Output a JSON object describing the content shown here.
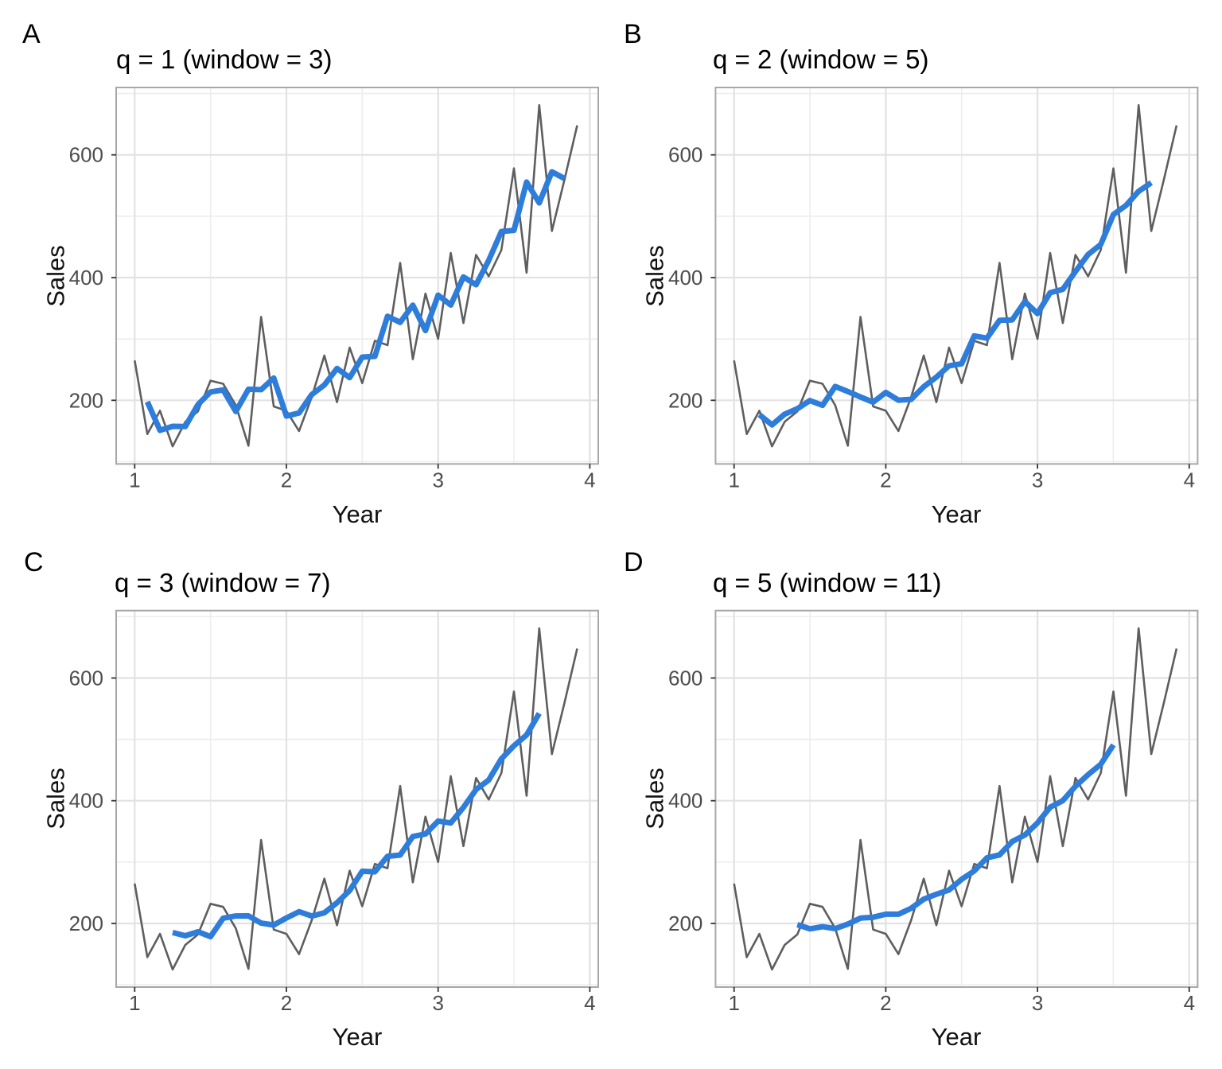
{
  "figure": {
    "xlabel": "Year",
    "ylabel": "Sales",
    "x_ticks": [
      "1",
      "2",
      "3",
      "4"
    ],
    "y_ticks": [
      "200",
      "400",
      "600"
    ]
  },
  "panels": [
    {
      "letter": "A",
      "title": "q = 1 (window = 3)",
      "q": 1,
      "window": 3
    },
    {
      "letter": "B",
      "title": "q = 2 (window = 5)",
      "q": 2,
      "window": 5
    },
    {
      "letter": "C",
      "title": "q = 3 (window = 7)",
      "q": 3,
      "window": 7
    },
    {
      "letter": "D",
      "title": "q = 5 (window = 11)",
      "q": 5,
      "window": 11
    }
  ],
  "chart_data": [
    {
      "type": "line",
      "title": "q = 1 (window = 3)",
      "xlabel": "Year",
      "ylabel": "Sales",
      "x_start": 1,
      "x_step": 0.0833333,
      "xlim": [
        0.88,
        4.06
      ],
      "ylim": [
        97,
        708
      ],
      "x_tick_values": [
        1,
        2,
        3,
        4
      ],
      "y_tick_values": [
        200,
        400,
        600
      ],
      "grid": "on",
      "series": [
        {
          "name": "raw_sales",
          "color": "#5E5E5E",
          "values": [
            265,
            145,
            183,
            125,
            165,
            182,
            232,
            227,
            192,
            126,
            336,
            190,
            183,
            150,
            205,
            273,
            197,
            286,
            228,
            297,
            290,
            424,
            267,
            374,
            300,
            440,
            326,
            437,
            402,
            445,
            578,
            408,
            681,
            476,
            560,
            648
          ]
        },
        {
          "name": "trend_moving_average",
          "color": "#2E7DDA",
          "derived": "centered moving average of raw_sales, window 3"
        }
      ]
    },
    {
      "type": "line",
      "title": "q = 2 (window = 5)",
      "xlabel": "Year",
      "ylabel": "Sales",
      "x_start": 1,
      "x_step": 0.0833333,
      "xlim": [
        0.88,
        4.06
      ],
      "ylim": [
        97,
        708
      ],
      "x_tick_values": [
        1,
        2,
        3,
        4
      ],
      "y_tick_values": [
        200,
        400,
        600
      ],
      "grid": "on",
      "series": [
        {
          "name": "raw_sales",
          "color": "#5E5E5E",
          "values": [
            265,
            145,
            183,
            125,
            165,
            182,
            232,
            227,
            192,
            126,
            336,
            190,
            183,
            150,
            205,
            273,
            197,
            286,
            228,
            297,
            290,
            424,
            267,
            374,
            300,
            440,
            326,
            437,
            402,
            445,
            578,
            408,
            681,
            476,
            560,
            648
          ]
        },
        {
          "name": "trend_moving_average",
          "color": "#2E7DDA",
          "derived": "centered moving average of raw_sales, window 5"
        }
      ]
    },
    {
      "type": "line",
      "title": "q = 3 (window = 7)",
      "xlabel": "Year",
      "ylabel": "Sales",
      "x_start": 1,
      "x_step": 0.0833333,
      "xlim": [
        0.88,
        4.06
      ],
      "ylim": [
        97,
        708
      ],
      "x_tick_values": [
        1,
        2,
        3,
        4
      ],
      "y_tick_values": [
        200,
        400,
        600
      ],
      "grid": "on",
      "series": [
        {
          "name": "raw_sales",
          "color": "#5E5E5E",
          "values": [
            265,
            145,
            183,
            125,
            165,
            182,
            232,
            227,
            192,
            126,
            336,
            190,
            183,
            150,
            205,
            273,
            197,
            286,
            228,
            297,
            290,
            424,
            267,
            374,
            300,
            440,
            326,
            437,
            402,
            445,
            578,
            408,
            681,
            476,
            560,
            648
          ]
        },
        {
          "name": "trend_moving_average",
          "color": "#2E7DDA",
          "derived": "centered moving average of raw_sales, window 7"
        }
      ]
    },
    {
      "type": "line",
      "title": "q = 5 (window = 11)",
      "xlabel": "Year",
      "ylabel": "Sales",
      "x_start": 1,
      "x_step": 0.0833333,
      "xlim": [
        0.88,
        4.06
      ],
      "ylim": [
        97,
        708
      ],
      "x_tick_values": [
        1,
        2,
        3,
        4
      ],
      "y_tick_values": [
        200,
        400,
        600
      ],
      "grid": "on",
      "series": [
        {
          "name": "raw_sales",
          "color": "#5E5E5E",
          "values": [
            265,
            145,
            183,
            125,
            165,
            182,
            232,
            227,
            192,
            126,
            336,
            190,
            183,
            150,
            205,
            273,
            197,
            286,
            228,
            297,
            290,
            424,
            267,
            374,
            300,
            440,
            326,
            437,
            402,
            445,
            578,
            408,
            681,
            476,
            560,
            648
          ]
        },
        {
          "name": "trend_moving_average",
          "color": "#2E7DDA",
          "derived": "centered moving average of raw_sales, window 11"
        }
      ]
    }
  ],
  "colors": {
    "raw_line": "#5E5E5E",
    "smooth_line": "#2E7DDA",
    "panel_border": "#A8A8A8",
    "grid_major": "#E2E2E2",
    "grid_minor": "#EDEDED",
    "tick_mark": "#333333",
    "tick_label": "#4D4D4D",
    "title_text": "#000000",
    "axis_title_text": "#111111",
    "background": "#FFFFFF"
  }
}
